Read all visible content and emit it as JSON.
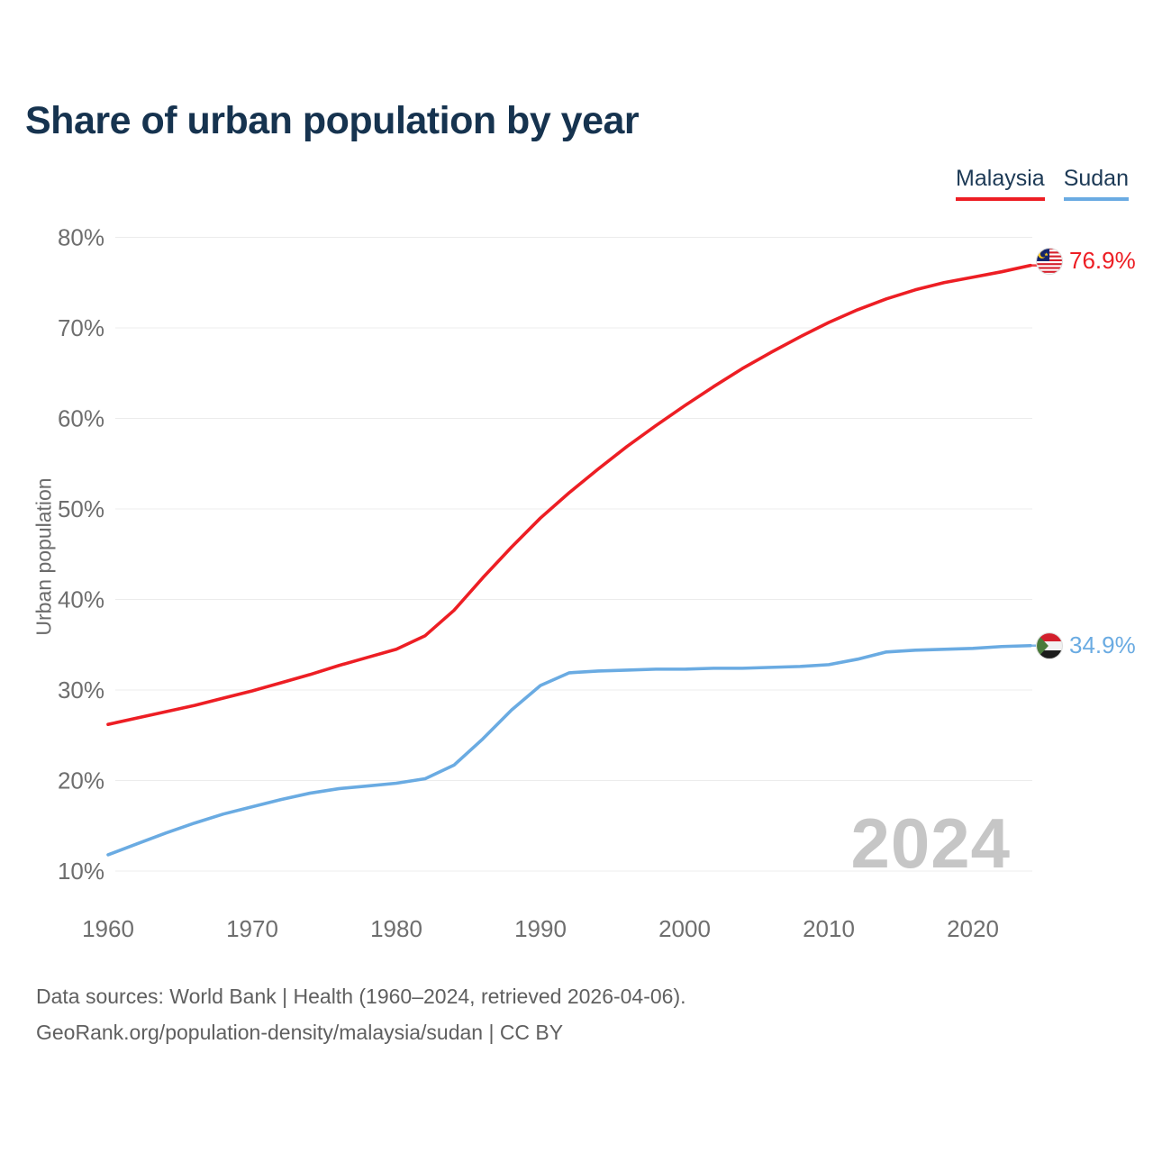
{
  "title": "Share of urban population by year",
  "legend": {
    "items": [
      {
        "label": "Malaysia",
        "color": "#ed1e24"
      },
      {
        "label": "Sudan",
        "color": "#6aabe2"
      }
    ]
  },
  "watermark": "2024",
  "end_labels": {
    "malaysia": {
      "value": "76.9%",
      "flag": "malaysia-flag",
      "color": "#ed1e24"
    },
    "sudan": {
      "value": "34.9%",
      "flag": "sudan-flag",
      "color": "#6aabe2"
    }
  },
  "footer": {
    "line1": "Data sources: World Bank | Health (1960–2024, retrieved 2026-04-06).",
    "line2": "GeoRank.org/population-density/malaysia/sudan | CC BY"
  },
  "chart_data": {
    "type": "line",
    "title": "Share of urban population by year",
    "xlabel": "",
    "ylabel": "Urban population",
    "x": [
      1960,
      1962,
      1964,
      1966,
      1968,
      1970,
      1972,
      1974,
      1976,
      1978,
      1980,
      1982,
      1984,
      1986,
      1988,
      1990,
      1992,
      1994,
      1996,
      1998,
      2000,
      2002,
      2004,
      2006,
      2008,
      2010,
      2012,
      2014,
      2016,
      2018,
      2020,
      2022,
      2024
    ],
    "series": [
      {
        "name": "Malaysia",
        "color": "#ed1e24",
        "values": [
          26.2,
          26.9,
          27.6,
          28.3,
          29.1,
          29.9,
          30.8,
          31.7,
          32.7,
          33.6,
          34.5,
          36.0,
          38.8,
          42.4,
          45.8,
          49.0,
          51.8,
          54.4,
          56.9,
          59.2,
          61.4,
          63.5,
          65.5,
          67.3,
          69.0,
          70.6,
          72.0,
          73.2,
          74.2,
          75.0,
          75.6,
          76.2,
          76.9
        ]
      },
      {
        "name": "Sudan",
        "color": "#6aabe2",
        "values": [
          11.8,
          13.0,
          14.2,
          15.3,
          16.3,
          17.1,
          17.9,
          18.6,
          19.1,
          19.4,
          19.7,
          20.2,
          21.7,
          24.6,
          27.8,
          30.5,
          31.9,
          32.1,
          32.2,
          32.3,
          32.3,
          32.4,
          32.4,
          32.5,
          32.6,
          32.8,
          33.4,
          34.2,
          34.4,
          34.5,
          34.6,
          34.8,
          34.9
        ]
      }
    ],
    "yticks": [
      10,
      20,
      30,
      40,
      50,
      60,
      70,
      80
    ],
    "ytick_suffix": "%",
    "xticks": [
      1960,
      1970,
      1980,
      1990,
      2000,
      2010,
      2020
    ],
    "ylim": [
      10,
      80
    ],
    "xlim": [
      1960,
      2024
    ],
    "grid": "horizontal",
    "legend_position": "top-right",
    "colors": {
      "grid": "#ececec",
      "tick_label": "#6e6e6e",
      "title_text": "#16334f",
      "watermark": "#c6c6c6",
      "footer_text": "#5f5f5f"
    }
  }
}
